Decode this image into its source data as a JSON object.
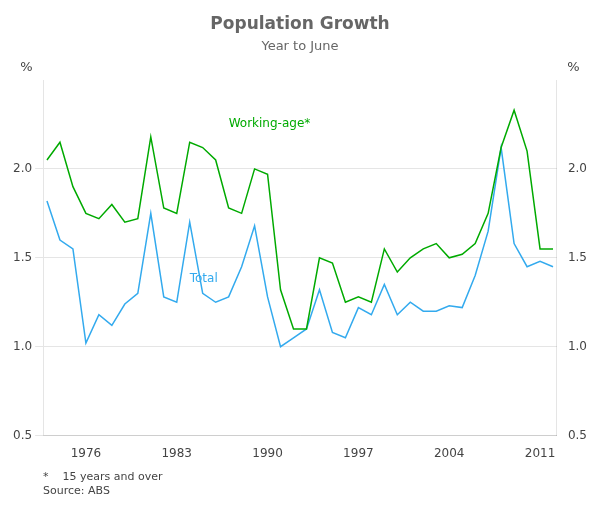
{
  "chart_data": {
    "type": "line",
    "title": "Population Growth",
    "subtitle": "Year to June",
    "ylabel": "%",
    "y2label": "%",
    "footnote": "*    15 years and over\nSource: ABS",
    "x": [
      1973,
      1974,
      1975,
      1976,
      1977,
      1978,
      1979,
      1980,
      1981,
      1982,
      1983,
      1984,
      1985,
      1986,
      1987,
      1988,
      1989,
      1990,
      1991,
      1992,
      1993,
      1994,
      1995,
      1996,
      1997,
      1998,
      1999,
      2000,
      2001,
      2002,
      2003,
      2004,
      2005,
      2006,
      2007,
      2008,
      2009,
      2010,
      2011,
      2012
    ],
    "series": [
      {
        "color": "#00aa00",
        "values": [
          2.05,
          2.15,
          1.9,
          1.75,
          1.72,
          1.8,
          1.7,
          1.72,
          2.18,
          1.78,
          1.75,
          2.15,
          2.12,
          2.05,
          1.78,
          1.75,
          2.0,
          1.97,
          1.32,
          1.1,
          1.1,
          1.5,
          1.47,
          1.25,
          1.28,
          1.25,
          1.55,
          1.42,
          1.5,
          1.55,
          1.58,
          1.5,
          1.52,
          1.58,
          1.75,
          2.12,
          2.33,
          2.1,
          1.55,
          1.55
        ]
      },
      {
        "color": "#33aaee",
        "values": [
          1.82,
          1.6,
          1.55,
          1.02,
          1.18,
          1.12,
          1.24,
          1.3,
          1.75,
          1.28,
          1.25,
          1.7,
          1.3,
          1.25,
          1.28,
          1.45,
          1.68,
          1.28,
          1.0,
          1.05,
          1.1,
          1.32,
          1.08,
          1.05,
          1.22,
          1.18,
          1.35,
          1.18,
          1.25,
          1.2,
          1.2,
          1.23,
          1.22,
          1.4,
          1.65,
          2.12,
          1.58,
          1.45,
          1.48,
          1.45
        ]
      }
    ],
    "xlim": [
      1972.7,
      2012.3
    ],
    "xticks": [
      1976,
      1983,
      1990,
      1997,
      2004,
      2011
    ],
    "ylim": [
      0.5,
      2.5
    ],
    "yticks": [
      0.5,
      {
        "value": 1.0,
        "label": "1.0"
      },
      1.5,
      {
        "value": 2.0,
        "label": "2.0"
      }
    ],
    "y2lim": [
      0.5,
      2.5
    ],
    "y2ticks": [
      0.5,
      {
        "value": 1.0,
        "label": "1.0"
      },
      1.5,
      {
        "value": 2.0,
        "label": "2.0"
      }
    ],
    "grid": "y",
    "annotations": [
      {
        "x": 1987,
        "y": 2.22,
        "text": "Working-age*",
        "color": "#00aa00"
      },
      {
        "x": 1984,
        "y": 1.35,
        "text": "Total",
        "color": "#33aaee"
      }
    ]
  }
}
